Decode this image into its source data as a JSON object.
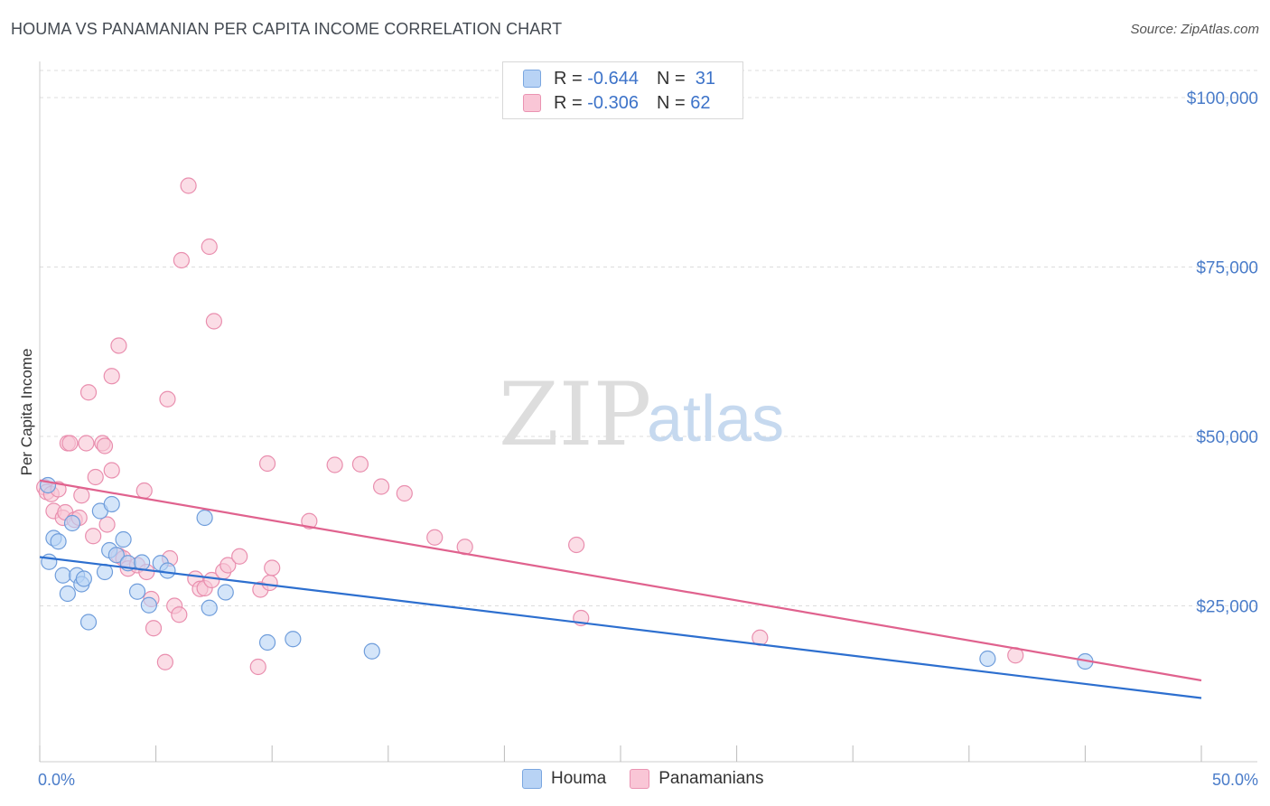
{
  "title": "HOUMA VS PANAMANIAN PER CAPITA INCOME CORRELATION CHART",
  "source": "Source: ZipAtlas.com",
  "watermark": {
    "zip": "ZIP",
    "atlas": "atlas"
  },
  "legend": {
    "rows": [
      {
        "r_label": "R =",
        "r_value": "-0.644",
        "n_label": "N =",
        "n_value": "31",
        "fill": "#b8d3f5",
        "stroke": "#7aa6e0"
      },
      {
        "r_label": "R =",
        "r_value": "-0.306",
        "n_label": "N =",
        "n_value": "62",
        "fill": "#f9c6d6",
        "stroke": "#ea93b2"
      }
    ]
  },
  "chart_data": {
    "type": "scatter",
    "title": "HOUMA VS PANAMANIAN PER CAPITA INCOME CORRELATION CHART",
    "xlabel": "",
    "ylabel": "Per Capita Income",
    "xlim": [
      0,
      50
    ],
    "ylim": [
      2000,
      104000
    ],
    "x_tick_labels": [
      "0.0%",
      "50.0%"
    ],
    "y_ticks": [
      25000,
      50000,
      75000,
      100000
    ],
    "y_tick_labels": [
      "$25,000",
      "$50,000",
      "$75,000",
      "$100,000"
    ],
    "grid": true,
    "series": [
      {
        "name": "Houma",
        "fill": "#b8d3f5",
        "stroke": "#6f9ddb",
        "line_color": "#2d6fcf",
        "trend": [
          [
            0,
            32200
          ],
          [
            50,
            11400
          ]
        ],
        "points": [
          [
            0.35,
            42800
          ],
          [
            0.4,
            31500
          ],
          [
            0.6,
            35000
          ],
          [
            0.8,
            34500
          ],
          [
            1.0,
            29500
          ],
          [
            1.2,
            26800
          ],
          [
            1.4,
            37200
          ],
          [
            1.6,
            29500
          ],
          [
            1.8,
            28200
          ],
          [
            1.9,
            29000
          ],
          [
            2.1,
            22600
          ],
          [
            2.6,
            39000
          ],
          [
            2.8,
            30000
          ],
          [
            3.0,
            33200
          ],
          [
            3.1,
            40000
          ],
          [
            3.3,
            32500
          ],
          [
            3.6,
            34800
          ],
          [
            3.8,
            31300
          ],
          [
            4.2,
            27100
          ],
          [
            4.4,
            31400
          ],
          [
            4.7,
            25100
          ],
          [
            5.2,
            31300
          ],
          [
            5.5,
            30200
          ],
          [
            7.1,
            38000
          ],
          [
            7.3,
            24700
          ],
          [
            8.0,
            27000
          ],
          [
            9.8,
            19600
          ],
          [
            10.9,
            20100
          ],
          [
            14.3,
            18300
          ],
          [
            40.8,
            17200
          ],
          [
            45.0,
            16800
          ]
        ]
      },
      {
        "name": "Panamanians",
        "fill": "#f9c6d6",
        "stroke": "#e98eae",
        "line_color": "#e0628e",
        "trend": [
          [
            0,
            43500
          ],
          [
            50,
            14000
          ]
        ],
        "points": [
          [
            0.2,
            42500
          ],
          [
            0.3,
            41800
          ],
          [
            0.5,
            41500
          ],
          [
            0.6,
            39000
          ],
          [
            0.8,
            42200
          ],
          [
            1.0,
            38000
          ],
          [
            1.1,
            38800
          ],
          [
            1.2,
            49000
          ],
          [
            1.3,
            49000
          ],
          [
            1.5,
            37700
          ],
          [
            1.7,
            38000
          ],
          [
            1.8,
            41300
          ],
          [
            2.0,
            49000
          ],
          [
            2.1,
            56500
          ],
          [
            2.3,
            35300
          ],
          [
            2.4,
            44000
          ],
          [
            2.7,
            49000
          ],
          [
            2.8,
            48600
          ],
          [
            2.9,
            37000
          ],
          [
            3.1,
            45000
          ],
          [
            3.1,
            58900
          ],
          [
            3.4,
            63400
          ],
          [
            3.4,
            32400
          ],
          [
            3.6,
            32000
          ],
          [
            3.8,
            30500
          ],
          [
            4.2,
            31000
          ],
          [
            4.5,
            42000
          ],
          [
            4.6,
            30000
          ],
          [
            4.8,
            26000
          ],
          [
            4.9,
            21700
          ],
          [
            5.4,
            16700
          ],
          [
            5.5,
            55500
          ],
          [
            5.6,
            32000
          ],
          [
            5.8,
            25000
          ],
          [
            6.0,
            23700
          ],
          [
            6.1,
            76000
          ],
          [
            6.4,
            87000
          ],
          [
            6.7,
            29000
          ],
          [
            6.9,
            27500
          ],
          [
            7.1,
            27600
          ],
          [
            7.3,
            78000
          ],
          [
            7.4,
            28800
          ],
          [
            7.5,
            67000
          ],
          [
            7.9,
            30100
          ],
          [
            8.1,
            31000
          ],
          [
            8.6,
            32300
          ],
          [
            9.4,
            16000
          ],
          [
            9.5,
            27400
          ],
          [
            9.8,
            46000
          ],
          [
            9.9,
            28400
          ],
          [
            10.0,
            30600
          ],
          [
            11.6,
            37500
          ],
          [
            12.7,
            45800
          ],
          [
            13.8,
            45900
          ],
          [
            14.7,
            42600
          ],
          [
            15.7,
            41600
          ],
          [
            17.0,
            35100
          ],
          [
            18.3,
            33700
          ],
          [
            23.1,
            34000
          ],
          [
            23.3,
            23200
          ],
          [
            31.0,
            20300
          ],
          [
            42.0,
            17700
          ]
        ]
      }
    ]
  },
  "bottom_legend": [
    {
      "label": "Houma",
      "fill": "#b8d3f5",
      "stroke": "#7aa6e0"
    },
    {
      "label": "Panamanians",
      "fill": "#f9c6d6",
      "stroke": "#ea93b2"
    }
  ]
}
